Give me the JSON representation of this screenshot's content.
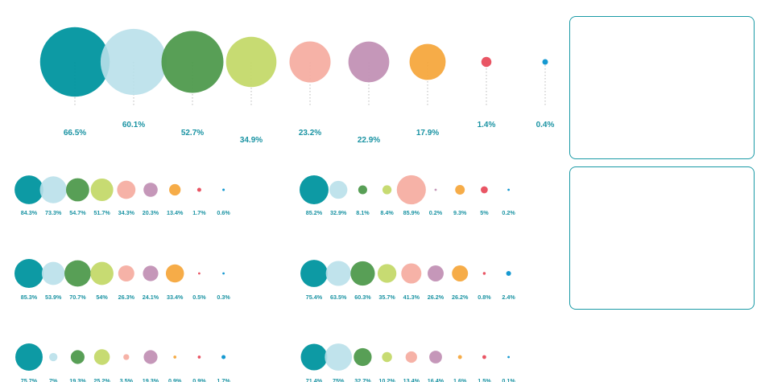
{
  "colors": [
    "#00959f",
    "#b9e0ea",
    "#4f9a4d",
    "#c4d96a",
    "#f5aea2",
    "#c291b5",
    "#f6a83e",
    "#e84c5c",
    "#0a93cf"
  ],
  "label_color": "#1a93a3",
  "chart_data": [
    {
      "type": "bubble",
      "name": "",
      "values": [
        66.5,
        60.1,
        52.7,
        34.9,
        23.2,
        22.9,
        17.9,
        1.4,
        0.4
      ],
      "labels": [
        "66.5%",
        "60.1%",
        "52.7%",
        "34.9%",
        "23.2%",
        "22.9%",
        "17.9%",
        "1.4%",
        "0.4%"
      ]
    },
    {
      "type": "bubble",
      "name": "",
      "values": [
        84.3,
        73.3,
        54.7,
        51.7,
        34.3,
        20.3,
        13.4,
        1.7,
        0.6
      ],
      "labels": [
        "84.3%",
        "73.3%",
        "54.7%",
        "51.7%",
        "34.3%",
        "20.3%",
        "13.4%",
        "1.7%",
        "0.6%"
      ]
    },
    {
      "type": "bubble",
      "name": "",
      "values": [
        85.2,
        32.9,
        8.1,
        8.4,
        85.9,
        0.2,
        9.3,
        5,
        0.2
      ],
      "labels": [
        "85.2%",
        "32.9%",
        "8.1%",
        "8.4%",
        "85.9%",
        "0.2%",
        "9.3%",
        "5%",
        "0.2%"
      ]
    },
    {
      "type": "bubble",
      "name": "",
      "values": [
        85.3,
        53.9,
        70.7,
        54,
        26.3,
        24.1,
        33.4,
        0.5,
        0.3
      ],
      "labels": [
        "85.3%",
        "53.9%",
        "70.7%",
        "54%",
        "26.3%",
        "24.1%",
        "33.4%",
        "0.5%",
        "0.3%"
      ]
    },
    {
      "type": "bubble",
      "name": "",
      "values": [
        75.4,
        63.5,
        60.3,
        35.7,
        41.3,
        26.2,
        26.2,
        0.8,
        2.4
      ],
      "labels": [
        "75.4%",
        "63.5%",
        "60.3%",
        "35.7%",
        "41.3%",
        "26.2%",
        "26.2%",
        "0.8%",
        "2.4%"
      ]
    },
    {
      "type": "bubble",
      "name": "",
      "values": [
        75.7,
        7,
        19.3,
        25.2,
        3.5,
        19.3,
        0.9,
        0.9,
        1.7
      ],
      "labels": [
        "75.7%",
        "7%",
        "19.3%",
        "25.2%",
        "3.5%",
        "19.3%",
        "0.9%",
        "0.9%",
        "1.7%"
      ]
    },
    {
      "type": "bubble",
      "name": "",
      "values": [
        71.4,
        75,
        32.7,
        10.2,
        13.4,
        16.4,
        1.6,
        1.5,
        0.1
      ],
      "labels": [
        "71.4%",
        "75%",
        "32.7%",
        "10.2%",
        "13.4%",
        "16.4%",
        "1.6%",
        "1.5%",
        "0.1%"
      ]
    }
  ]
}
